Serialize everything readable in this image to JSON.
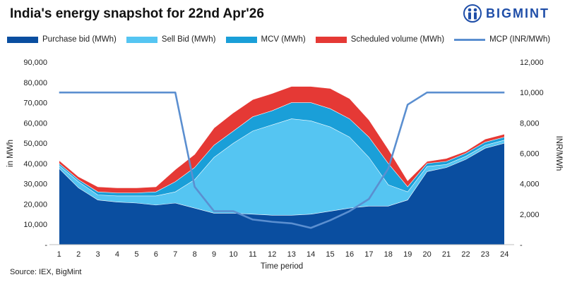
{
  "title": "India's energy snapshot for 22nd Apr'26",
  "brand": {
    "name": "BIGMINT",
    "logo_icon": "bigmint-logo-icon",
    "color": "#1f4ea8"
  },
  "source": "Source: IEX, BigMint",
  "chart_data": {
    "type": "area",
    "xlabel": "Time period",
    "ylabel": "in MWh",
    "y2label": "INR/MWh",
    "ylim": [
      0,
      90000
    ],
    "y2lim": [
      0,
      12000
    ],
    "yticks": [
      "-",
      "10,000",
      "20,000",
      "30,000",
      "40,000",
      "50,000",
      "60,000",
      "70,000",
      "80,000",
      "90,000"
    ],
    "y2ticks": [
      "-",
      "2,000",
      "4,000",
      "6,000",
      "8,000",
      "10,000",
      "12,000"
    ],
    "categories": [
      "1",
      "2",
      "3",
      "4",
      "5",
      "6",
      "7",
      "8",
      "9",
      "10",
      "11",
      "12",
      "13",
      "14",
      "15",
      "16",
      "17",
      "18",
      "19",
      "20",
      "21",
      "22",
      "23",
      "24"
    ],
    "grid": false,
    "legend_position": "top",
    "series": [
      {
        "name": "Purchase bid (MWh)",
        "color": "#0a4ea0",
        "values": [
          37500,
          28000,
          22000,
          21000,
          20500,
          19500,
          20500,
          18000,
          15500,
          15500,
          15000,
          14500,
          14500,
          15000,
          16500,
          18000,
          19000,
          19000,
          22000,
          36000,
          38000,
          42000,
          47500,
          50000
        ]
      },
      {
        "name": "Sell Bid (MWh)",
        "color": "#55c5f2",
        "values": [
          39000,
          31000,
          24500,
          24000,
          24000,
          24000,
          26000,
          32000,
          43000,
          50000,
          56000,
          59000,
          62000,
          61000,
          58000,
          53000,
          43000,
          29500,
          26000,
          38500,
          39500,
          43500,
          49000,
          51500
        ]
      },
      {
        "name": "MCV (MWh)",
        "color": "#1a9fd8",
        "values": [
          40000,
          32000,
          26000,
          25500,
          25500,
          26000,
          31000,
          38000,
          49000,
          56000,
          63000,
          66000,
          70000,
          70000,
          67000,
          62000,
          53000,
          40000,
          28500,
          40000,
          41000,
          45000,
          50500,
          53000
        ]
      },
      {
        "name": "Scheduled volume (MWh)",
        "color": "#e53935",
        "values": [
          41500,
          33500,
          28500,
          28000,
          28000,
          28500,
          37000,
          44500,
          57500,
          65000,
          71500,
          74500,
          78000,
          78000,
          77000,
          72000,
          61500,
          47000,
          31500,
          41000,
          42500,
          46000,
          52000,
          54500
        ]
      }
    ],
    "line_series": {
      "name": "MCP (INR/MWh)",
      "color": "#5b8fd0",
      "axis": "right",
      "values": [
        10000,
        10000,
        10000,
        10000,
        10000,
        10000,
        10000,
        3800,
        2200,
        2200,
        1650,
        1500,
        1400,
        1100,
        1600,
        2200,
        3000,
        5000,
        9200,
        10000,
        10000,
        10000,
        10000,
        10000
      ]
    }
  }
}
